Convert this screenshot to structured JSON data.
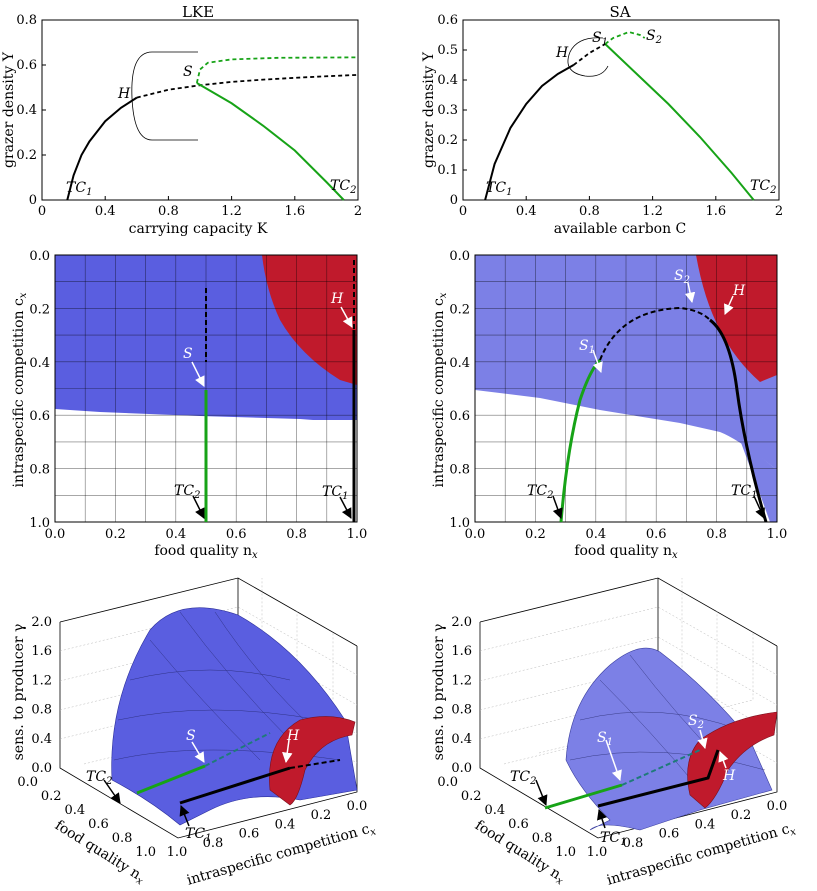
{
  "colors": {
    "blue": "#5a5ee0",
    "blue_light": "#7c80e6",
    "red": "#c01a2c",
    "green": "#17a317",
    "black": "#000000"
  },
  "chart_data": [
    {
      "id": "lke-bif",
      "type": "line",
      "title": "LKE",
      "xlabel": "carrying capacity K",
      "ylabel": "grazer density Y",
      "xlim": [
        0,
        2
      ],
      "ylim": [
        0,
        0.8
      ],
      "xticks": [
        "0",
        "0.4",
        "0.8",
        "1.2",
        "1.6",
        "2"
      ],
      "yticks": [
        "0",
        "0.2",
        "0.4",
        "0.6",
        "0.8"
      ],
      "series": [
        {
          "style": "black-solid",
          "x": [
            0.16,
            0.2,
            0.25,
            0.3,
            0.4,
            0.5,
            0.6
          ],
          "y": [
            0,
            0.11,
            0.2,
            0.26,
            0.35,
            0.41,
            0.455
          ]
        },
        {
          "style": "black-dashed",
          "x": [
            0.6,
            0.8,
            1.0,
            1.2,
            1.4,
            1.6,
            1.8,
            2.0
          ],
          "y": [
            0.455,
            0.49,
            0.51,
            0.525,
            0.535,
            0.543,
            0.55,
            0.556
          ]
        },
        {
          "style": "green-solid",
          "x": [
            0.98,
            1.2,
            1.4,
            1.6,
            1.8,
            1.91
          ],
          "y": [
            0.52,
            0.43,
            0.33,
            0.22,
            0.08,
            0
          ]
        },
        {
          "style": "green-dashed",
          "x": [
            0.98,
            1.0,
            1.05,
            1.2,
            1.5,
            2.0
          ],
          "y": [
            0.52,
            0.58,
            0.61,
            0.625,
            0.632,
            0.634
          ]
        }
      ],
      "labels": [
        "H",
        "S",
        "TC",
        "1",
        "TC",
        "2"
      ]
    },
    {
      "id": "sa-bif",
      "type": "line",
      "title": "SA",
      "xlabel": "available carbon C",
      "ylabel": "grazer density Y",
      "xlim": [
        0,
        2
      ],
      "ylim": [
        0,
        0.6
      ],
      "xticks": [
        "0",
        "0.4",
        "0.8",
        "1.2",
        "1.6",
        "2"
      ],
      "yticks": [
        "0",
        "0.1",
        "0.2",
        "0.3",
        "0.4",
        "0.5",
        "0.6"
      ],
      "series": [
        {
          "style": "black-solid",
          "x": [
            0.14,
            0.2,
            0.3,
            0.4,
            0.5,
            0.6,
            0.7
          ],
          "y": [
            0,
            0.12,
            0.24,
            0.32,
            0.38,
            0.42,
            0.45
          ]
        },
        {
          "style": "black-dashed",
          "x": [
            0.7,
            0.8,
            0.9
          ],
          "y": [
            0.45,
            0.49,
            0.52
          ]
        },
        {
          "style": "green-solid",
          "x": [
            0.9,
            1.1,
            1.3,
            1.5,
            1.7,
            1.84
          ],
          "y": [
            0.52,
            0.42,
            0.32,
            0.21,
            0.09,
            0
          ]
        },
        {
          "style": "green-dashed",
          "x": [
            0.9,
            0.95,
            1.05,
            1.12,
            1.15
          ],
          "y": [
            0.52,
            0.54,
            0.56,
            0.55,
            0.54
          ]
        }
      ],
      "labels": [
        "H",
        "S",
        "1",
        "S",
        "2",
        "TC",
        "1",
        "TC",
        "2"
      ]
    },
    {
      "id": "lke-map",
      "type": "heatmap",
      "xlabel": "food quality n",
      "xsub": "x",
      "ylabel": "intraspecific competition c",
      "ysub": "x",
      "xlim": [
        0,
        1
      ],
      "ylim": [
        0,
        1
      ],
      "xticks": [
        "0.0",
        "0.2",
        "0.4",
        "0.6",
        "0.8",
        "1.0"
      ],
      "yticks": [
        "0.0",
        "0.2",
        "0.4",
        "0.6",
        "0.8",
        "1.0"
      ],
      "labels": [
        "H",
        "S",
        "TC",
        "1",
        "TC",
        "2"
      ]
    },
    {
      "id": "sa-map",
      "type": "heatmap",
      "xlabel": "food quality n",
      "xsub": "x",
      "ylabel": "intraspecific competition c",
      "ysub": "x",
      "xlim": [
        0,
        1
      ],
      "ylim": [
        0,
        1
      ],
      "xticks": [
        "0.0",
        "0.2",
        "0.4",
        "0.6",
        "0.8",
        "1.0"
      ],
      "yticks": [
        "0.0",
        "0.2",
        "0.4",
        "0.6",
        "0.8",
        "1.0"
      ],
      "labels": [
        "H",
        "S",
        "1",
        "S",
        "2",
        "TC",
        "1",
        "TC",
        "2"
      ]
    },
    {
      "id": "lke-3d",
      "type": "surface",
      "zlabel": "sens. to producer γ",
      "xlabel": "food quality n",
      "xsub": "x",
      "ylabel": "intraspecific competition c",
      "ysub": "x",
      "zticks": [
        "0.0",
        "0.4",
        "0.8",
        "1.2",
        "1.6",
        "2.0"
      ],
      "nticks": [
        "0.0",
        "0.2",
        "0.4",
        "0.6",
        "0.8",
        "1.0"
      ],
      "cticks": [
        "0.0",
        "0.2",
        "0.4",
        "0.6",
        "0.8",
        "1.0"
      ],
      "labels": [
        "H",
        "S",
        "TC",
        "1",
        "TC",
        "2"
      ]
    },
    {
      "id": "sa-3d",
      "type": "surface",
      "zlabel": "sens. to producer γ",
      "xlabel": "food quality n",
      "xsub": "x",
      "ylabel": "intraspecific competition c",
      "ysub": "x",
      "zticks": [
        "0.0",
        "0.4",
        "0.8",
        "1.2",
        "1.6",
        "2.0"
      ],
      "nticks": [
        "0.0",
        "0.2",
        "0.4",
        "0.6",
        "0.8",
        "1.0"
      ],
      "cticks": [
        "0.0",
        "0.2",
        "0.4",
        "0.6",
        "0.8",
        "1.0"
      ],
      "labels": [
        "H",
        "S",
        "1",
        "S",
        "2",
        "TC",
        "1",
        "TC",
        "2"
      ]
    }
  ]
}
